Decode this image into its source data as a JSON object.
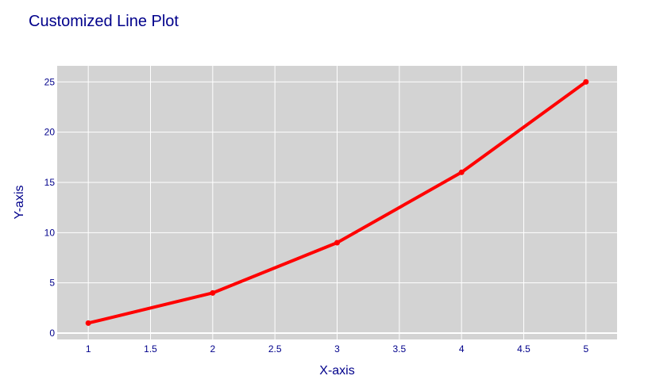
{
  "chart_data": {
    "type": "line",
    "title": "Customized Line Plot",
    "xlabel": "X-axis",
    "ylabel": "Y-axis",
    "x": [
      1,
      2,
      3,
      4,
      5
    ],
    "series": [
      {
        "values": [
          1,
          4,
          9,
          16,
          25
        ],
        "color": "#ff0000",
        "mode": "lines+markers"
      }
    ],
    "xlim": [
      0.75,
      5.25
    ],
    "ylim": [
      -0.63,
      26.6
    ],
    "xticks": [
      1,
      1.5,
      2,
      2.5,
      3,
      3.5,
      4,
      4.5,
      5
    ],
    "xtick_labels": [
      "1",
      "1.5",
      "2",
      "2.5",
      "3",
      "3.5",
      "4",
      "4.5",
      "5"
    ],
    "yticks": [
      0,
      5,
      10,
      15,
      20,
      25
    ],
    "ytick_labels": [
      "0",
      "5",
      "10",
      "15",
      "20",
      "25"
    ],
    "grid": true,
    "colors": {
      "plot_bg": "#d3d3d3",
      "grid": "#ffffff",
      "text": "#00008b",
      "line": "#ff0000"
    }
  }
}
